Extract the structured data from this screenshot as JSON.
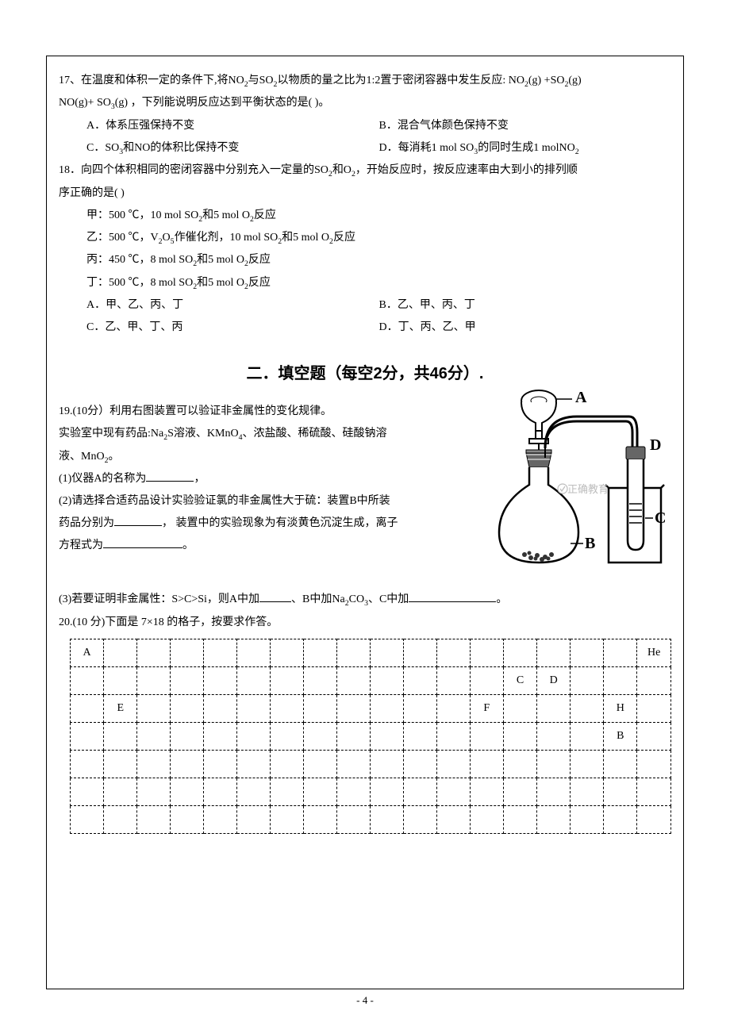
{
  "q17": {
    "stem_a": "17、在温度和体积一定的条件下,将NO",
    "stem_b": "与SO",
    "stem_c": "以物质的量之比为1:2置于密闭容器中发生反应: NO",
    "stem_d": "(g) +SO",
    "stem_e": "(g)",
    "line2_a": "NO(g)+ SO",
    "line2_b": "(g) ，下列能说明反应达到平衡状态的是(   )。",
    "A": "A．体系压强保持不变",
    "B": "B．混合气体颜色保持不变",
    "C_a": "C．SO",
    "C_b": "和NO的体积比保持不变",
    "D_a": "D．每消耗1 mol SO",
    "D_b": "的同时生成1 molNO"
  },
  "q18": {
    "stem_a": "18．向四个体积相同的密闭容器中分别充入一定量的SO",
    "stem_b": "和O",
    "stem_c": "，开始反应时，按反应速率由大到小的排列顺",
    "stem2": "序正确的是(  )",
    "jia_a": "甲：500 ℃，10 mol SO",
    "jia_b": "和5 mol O",
    "jia_c": "反应",
    "yi_a": "乙：500 ℃，V",
    "yi_b": "O",
    "yi_c": "作催化剂，10 mol SO",
    "yi_d": "和5 mol O",
    "yi_e": "反应",
    "bing_a": "丙：450 ℃，8 mol SO",
    "bing_b": "和5 mol O",
    "bing_c": "反应",
    "ding_a": "丁：500 ℃，8 mol SO",
    "ding_b": "和5 mol O",
    "ding_c": "反应",
    "A": "A．甲、乙、丙、丁",
    "B": "B．乙、甲、丙、丁",
    "C": "C．乙、甲、丁、丙",
    "D": "D．丁、丙、乙、甲"
  },
  "sec2": "二．填空题（每空2分，共46分）.",
  "q19": {
    "l1": "19.(10分）利用右图装置可以验证非金属性的变化规律。",
    "l2_a": "实验室中现有药品:Na",
    "l2_b": "S溶液、KMnO",
    "l2_c": "、浓盐酸、稀硫酸、硅酸钠溶",
    "l3_a": "液、MnO",
    "l3_b": "。",
    "l4": "(1)仪器A的名称为",
    "l4_b": "，",
    "l5": "(2)请选择合适药品设计实验验证氯的非金属性大于硫：装置B中所装",
    "l6_a": "药品分别为",
    "l6_b": "， 装置中的实验现象为有淡黄色沉淀生成，离子",
    "l7_a": "方程式为",
    "l7_b": "。",
    "l8_a": "(3)若要证明非金属性：S>C>Si，则A中加",
    "l8_b": "、B中加Na",
    "l8_c": "CO",
    "l8_d": "、C中加",
    "l8_e": "。",
    "wm": "正确教育",
    "labels": {
      "A": "A",
      "B": "B",
      "C": "C",
      "D": "D"
    }
  },
  "q20": {
    "l1": "20.(10 分)下面是 7×18 的格子，按要求作答。"
  },
  "table": {
    "rows": 7,
    "cols": 18,
    "cells": {
      "0-0": "A",
      "0-17": "He",
      "1-13": "C",
      "1-14": "D",
      "2-1": "E",
      "2-12": "F",
      "2-16": "H",
      "3-16": "B"
    }
  },
  "page_num": "- 4 -",
  "colors": {
    "text": "#000",
    "wm": "#bdbdbd"
  }
}
